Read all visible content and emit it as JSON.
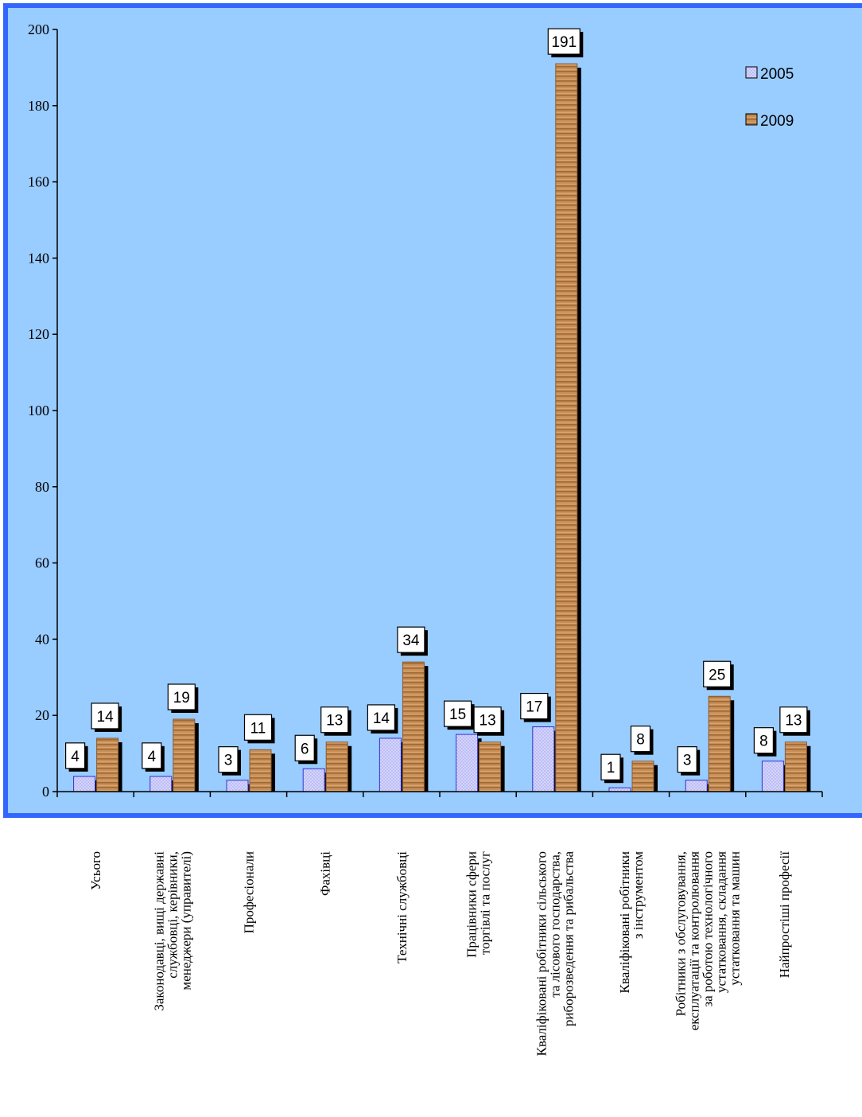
{
  "colors": {
    "plot_bg": "#99CCFF",
    "frame": "#3366FF",
    "series_2005": "#CCCCFF",
    "series_2005_edge": "#3333CC",
    "series_2009": "#C89058",
    "series_2009_dark": "#8A5A30",
    "shadow": "#000000"
  },
  "legend": {
    "items": [
      {
        "label": "2005",
        "color": "#CCCCFF"
      },
      {
        "label": "2009",
        "color": "#C89058"
      }
    ],
    "placement": "top-right"
  },
  "chart_data": {
    "type": "bar",
    "title": "",
    "xlabel": "",
    "ylabel": "",
    "ylim": [
      0,
      200
    ],
    "yticks": [
      0,
      20,
      40,
      60,
      80,
      100,
      120,
      140,
      160,
      180,
      200
    ],
    "grid": false,
    "categories": [
      [
        "Усього"
      ],
      [
        "Законодавці, вищі державні",
        "службовці, керівники,",
        "менеджери (управителі)"
      ],
      [
        "Професіонали"
      ],
      [
        "Фахівці"
      ],
      [
        "Технічні службовці"
      ],
      [
        "Працівники сфери",
        "торгівлі та послуг"
      ],
      [
        "Кваліфіковані робітники сільського",
        "та лісового господарства,",
        "риборозведення та рибальства"
      ],
      [
        "Кваліфіковані робітники",
        "з інструментом"
      ],
      [
        "Робітники з обслуговування,",
        "експлуатації та контролювання",
        "за роботою технологічного",
        "устатковання, складання",
        "устатковання та машин"
      ],
      [
        "Найпростіші професії"
      ]
    ],
    "series": [
      {
        "name": "2005",
        "values": [
          4,
          4,
          3,
          6,
          14,
          15,
          17,
          1,
          3,
          8
        ]
      },
      {
        "name": "2009",
        "values": [
          14,
          19,
          11,
          13,
          34,
          13,
          191,
          8,
          25,
          13
        ]
      }
    ]
  }
}
